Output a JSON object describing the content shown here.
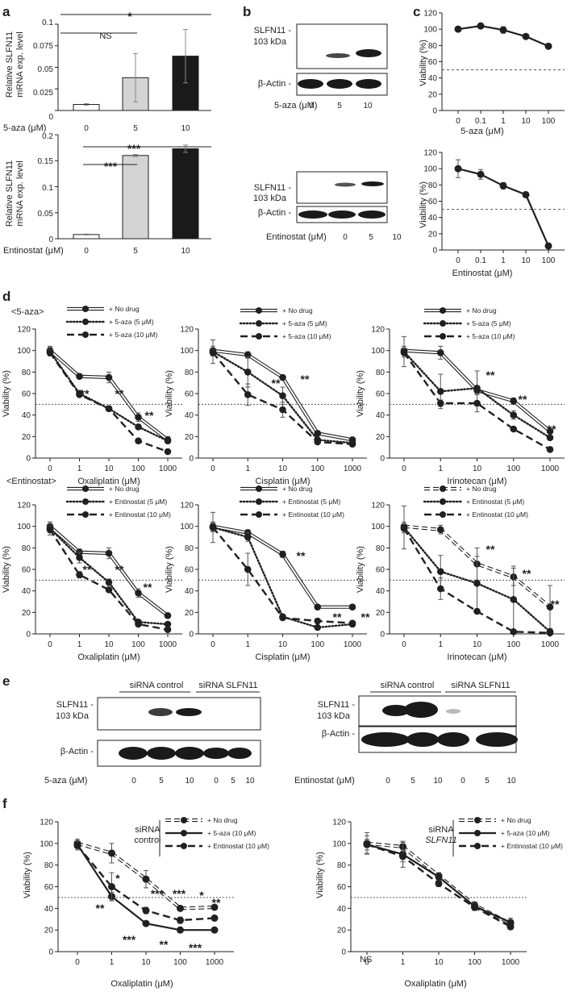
{
  "figure": {
    "panel_letters": [
      "a",
      "b",
      "c",
      "d",
      "e",
      "f"
    ],
    "a_top": {
      "ylabel_line1": "Relative SLFN11",
      "ylabel_line2": "mRNA exp. level",
      "xtitle": "5-aza (μM)",
      "yticks": [
        "0",
        "0.025",
        "0.05",
        "0.075",
        "0.1"
      ],
      "xcats": [
        "0",
        "5",
        "10"
      ],
      "sig_ns": "NS",
      "sig_star": "*"
    },
    "a_bot": {
      "ylabel_line1": "Relative SLFN11",
      "ylabel_line2": "mRNA exp. level",
      "xtitle": "Entinostat (μM)",
      "yticks": [
        "0",
        "0.05",
        "0.1",
        "0.15",
        "0.2"
      ],
      "xcats": [
        "0",
        "5",
        "10"
      ],
      "sig1": "***",
      "sig2": "***"
    },
    "b_top": {
      "row1_a": "SLFN11 -",
      "row1_b": "103 kDa",
      "row2": "β-Actin -",
      "xtitle": "5-aza (μM)",
      "lanes": [
        "0",
        "5",
        "10"
      ]
    },
    "b_bot": {
      "row1_a": "SLFN11 -",
      "row1_b": "103 kDa",
      "row2": "β-Actin -",
      "xtitle": "Entinostat (μM)",
      "lanes": [
        "0",
        "5",
        "10"
      ]
    },
    "c_top": {
      "ylabel": "Viability (%)",
      "xtitle": "5-aza (μM)",
      "yticks": [
        "0",
        "20",
        "40",
        "60",
        "80",
        "100",
        "120"
      ],
      "xticks": [
        "0",
        "0.1",
        "1",
        "10",
        "100"
      ]
    },
    "c_bot": {
      "ylabel": "Viability (%)",
      "xtitle": "Entinostat (μM)",
      "yticks": [
        "0",
        "20",
        "40",
        "60",
        "80",
        "100",
        "120"
      ],
      "xticks": [
        "0",
        "0.1",
        "1",
        "10",
        "100"
      ]
    },
    "d": {
      "group1": "<5-aza>",
      "group2": "<Entinostat>",
      "ylabel": "Viability (%)",
      "yticks": [
        "0",
        "20",
        "40",
        "60",
        "80",
        "100",
        "120"
      ],
      "xticks": [
        "0",
        "1",
        "10",
        "100",
        "1000"
      ],
      "xt_oxa": "Oxaliplatin (μM)",
      "xt_cis": "Cisplatin (μM)",
      "xt_iri": "Irinotecan (μM)",
      "leg_nodrug": "+ No drug",
      "leg_aza5": "+ 5-aza (5 μM)",
      "leg_aza10": "+ 5-aza (10 μM)",
      "leg_ent5": "+ Entinostat (5 μM)",
      "leg_ent10": "+ Entinostat (10 μM)",
      "star2": "**"
    },
    "e": {
      "header_ctrl": "siRNA control",
      "header_si": "siRNA SLFN11",
      "row1_a": "SLFN11 -",
      "row1_b": "103 kDa",
      "row2": "β-Actin -",
      "xt_left": "5-aza (μM)",
      "xt_right": "Entinostat (μM)",
      "lanes": [
        "0",
        "5",
        "10",
        "0",
        "5",
        "10"
      ]
    },
    "f": {
      "ylabel": "Viability (%)",
      "xtitle": "Oxaliplatin (μM)",
      "yticks": [
        "0",
        "20",
        "40",
        "60",
        "80",
        "100",
        "120"
      ],
      "xticks": [
        "0",
        "1",
        "10",
        "100",
        "1000"
      ],
      "sirna_ctrl_1": "siRNA",
      "sirna_ctrl_2": "control",
      "sirna_si_1": "siRNA",
      "sirna_si_2": "SLFN11",
      "leg_nodrug": "+ No drug",
      "leg_aza": "+ 5-aza (10 μM)",
      "leg_ent": "+ Entinostat (10 μM)",
      "ns": "NS",
      "s1": "*",
      "s2": "**",
      "s3": "***"
    }
  },
  "chart_data": [
    {
      "id": "a_top",
      "type": "bar",
      "categories": [
        "0",
        "5",
        "10"
      ],
      "values": [
        0.007,
        0.038,
        0.063
      ],
      "errors": [
        0.001,
        0.028,
        0.031
      ],
      "colors": [
        "#ffffff",
        "#d4d4d4",
        "#1a1a1a"
      ],
      "ylabel": "Relative SLFN11 mRNA exp. level",
      "xlabel": "5-aza (μM)",
      "ylim": [
        0,
        0.1
      ]
    },
    {
      "id": "a_bot",
      "type": "bar",
      "categories": [
        "0",
        "5",
        "10"
      ],
      "values": [
        0.008,
        0.16,
        0.173
      ],
      "errors": [
        0.001,
        0.002,
        0.007
      ],
      "colors": [
        "#ffffff",
        "#d4d4d4",
        "#1a1a1a"
      ],
      "ylabel": "Relative SLFN11 mRNA exp. level",
      "xlabel": "Entinostat (μM)",
      "ylim": [
        0,
        0.2
      ]
    },
    {
      "id": "c_top",
      "type": "line",
      "x": [
        "0",
        "0.1",
        "1",
        "10",
        "100"
      ],
      "series": [
        {
          "values": [
            100,
            104,
            99,
            91,
            79
          ],
          "errors": [
            3,
            2,
            4,
            2,
            2
          ]
        }
      ],
      "ylabel": "Viability (%)",
      "xlabel": "5-aza (μM)",
      "ylim": [
        0,
        120
      ],
      "reference_line": 50
    },
    {
      "id": "c_bot",
      "type": "line",
      "x": [
        "0",
        "0.1",
        "1",
        "10",
        "100"
      ],
      "series": [
        {
          "values": [
            100,
            93,
            79,
            68,
            5
          ],
          "errors": [
            11,
            6,
            4,
            3,
            1
          ]
        }
      ],
      "ylabel": "Viability (%)",
      "xlabel": "Entinostat (μM)",
      "ylim": [
        0,
        120
      ],
      "reference_line": 50
    },
    {
      "id": "d_aza_oxa",
      "type": "line",
      "x": [
        "0",
        "1",
        "10",
        "100",
        "1000"
      ],
      "series": [
        {
          "name": "+ No drug",
          "values": [
            100,
            76,
            75,
            38,
            17
          ],
          "errors": [
            4,
            2,
            5,
            4,
            3
          ]
        },
        {
          "name": "+ 5-aza (5 μM)",
          "values": [
            99,
            60,
            46,
            29,
            16
          ],
          "errors": [
            4,
            3,
            2,
            2,
            2
          ]
        },
        {
          "name": "+ 5-aza (10 μM)",
          "values": [
            98,
            59,
            46,
            16,
            6
          ],
          "errors": [
            3,
            2,
            2,
            1,
            1
          ]
        }
      ],
      "ylabel": "Viability (%)",
      "xlabel": "Oxaliplatin (μM)",
      "ylim": [
        0,
        120
      ],
      "reference_line": 50
    },
    {
      "id": "d_aza_cis",
      "type": "line",
      "x": [
        "0",
        "1",
        "10",
        "100",
        "1000"
      ],
      "series": [
        {
          "name": "+ No drug",
          "values": [
            100,
            96,
            75,
            23,
            17
          ],
          "errors": [
            4,
            3,
            2,
            1,
            1
          ]
        },
        {
          "name": "+ 5-aza (5 μM)",
          "values": [
            99,
            80,
            58,
            17,
            14
          ],
          "errors": [
            11,
            14,
            8,
            1,
            1
          ]
        },
        {
          "name": "+ 5-aza (10 μM)",
          "values": [
            98,
            59,
            45,
            15,
            13
          ],
          "errors": [
            3,
            10,
            7,
            1,
            1
          ]
        }
      ],
      "ylabel": "Viability (%)",
      "xlabel": "Cisplatin (μM)",
      "ylim": [
        0,
        120
      ],
      "reference_line": 50
    },
    {
      "id": "d_aza_iri",
      "type": "line",
      "x": [
        "0",
        "1",
        "10",
        "100",
        "1000"
      ],
      "series": [
        {
          "name": "+ No drug",
          "values": [
            100,
            98,
            63,
            53,
            25
          ],
          "errors": [
            4,
            6,
            3,
            3,
            2
          ]
        },
        {
          "name": "+ 5-aza (5 μM)",
          "values": [
            99,
            62,
            65,
            40,
            19
          ],
          "errors": [
            14,
            16,
            16,
            4,
            2
          ]
        },
        {
          "name": "+ 5-aza (10 μM)",
          "values": [
            98,
            51,
            51,
            27,
            8
          ],
          "errors": [
            4,
            3,
            8,
            2,
            1
          ]
        }
      ],
      "ylabel": "Viability (%)",
      "xlabel": "Irinotecan (μM)",
      "ylim": [
        0,
        120
      ],
      "reference_line": 50
    },
    {
      "id": "d_ent_oxa",
      "type": "line",
      "x": [
        "0",
        "1",
        "10",
        "100",
        "1000"
      ],
      "series": [
        {
          "name": "+ No drug",
          "values": [
            100,
            76,
            75,
            38,
            17
          ],
          "errors": [
            4,
            3,
            5,
            4,
            1
          ]
        },
        {
          "name": "+ Entinostat (5 μM)",
          "values": [
            98,
            71,
            48,
            11,
            9
          ],
          "errors": [
            6,
            5,
            3,
            1,
            1
          ]
        },
        {
          "name": "+ Entinostat (10 μM)",
          "values": [
            97,
            55,
            41,
            9,
            4
          ],
          "errors": [
            3,
            3,
            2,
            1,
            1
          ]
        }
      ],
      "ylabel": "Viability (%)",
      "xlabel": "Oxaliplatin (μM)",
      "ylim": [
        0,
        120
      ],
      "reference_line": 50
    },
    {
      "id": "d_ent_cis",
      "type": "line",
      "x": [
        "0",
        "1",
        "10",
        "100",
        "1000"
      ],
      "series": [
        {
          "name": "+ No drug",
          "values": [
            100,
            94,
            74,
            25,
            25
          ],
          "errors": [
            4,
            3,
            3,
            1,
            1
          ]
        },
        {
          "name": "+ Entinostat (5 μM)",
          "values": [
            99,
            90,
            16,
            6,
            9
          ],
          "errors": [
            14,
            4,
            1,
            1,
            1
          ]
        },
        {
          "name": "+ Entinostat (10 μM)",
          "values": [
            99,
            60,
            15,
            12,
            10
          ],
          "errors": [
            4,
            15,
            1,
            1,
            2
          ]
        }
      ],
      "ylabel": "Viability (%)",
      "xlabel": "Cisplatin (μM)",
      "ylim": [
        0,
        120
      ],
      "reference_line": 50
    },
    {
      "id": "d_ent_iri",
      "type": "line",
      "x": [
        "0",
        "1",
        "10",
        "100",
        "1000"
      ],
      "series": [
        {
          "name": "+ No drug",
          "values": [
            100,
            97,
            65,
            53,
            25
          ],
          "errors": [
            4,
            4,
            15,
            8,
            20
          ]
        },
        {
          "name": "+ Entinostat (5 μM)",
          "values": [
            99,
            58,
            47,
            32,
            2
          ],
          "errors": [
            20,
            15,
            25,
            31,
            2
          ]
        },
        {
          "name": "+ Entinostat (10 μM)",
          "values": [
            98,
            42,
            21,
            2,
            1
          ],
          "errors": [
            4,
            10,
            2,
            1,
            1
          ]
        }
      ],
      "ylabel": "Viability (%)",
      "xlabel": "Irinotecan (μM)",
      "ylim": [
        0,
        120
      ],
      "reference_line": 50
    },
    {
      "id": "f_ctrl",
      "type": "line",
      "x": [
        "0",
        "1",
        "10",
        "100",
        "1000"
      ],
      "series": [
        {
          "name": "+ No drug",
          "values": [
            100,
            91,
            67,
            40,
            41
          ],
          "errors": [
            4,
            9,
            8,
            2,
            1
          ]
        },
        {
          "name": "+ 5-aza (10 μM)",
          "values": [
            99,
            51,
            26,
            20,
            20
          ],
          "errors": [
            3,
            4,
            1,
            1,
            1
          ]
        },
        {
          "name": "+ Entinostat (10 μM)",
          "values": [
            98,
            60,
            38,
            29,
            31
          ],
          "errors": [
            4,
            13,
            3,
            3,
            2
          ]
        }
      ],
      "ylabel": "Viability (%)",
      "xlabel": "Oxaliplatin (μM)",
      "ylim": [
        0,
        120
      ],
      "reference_line": 50
    },
    {
      "id": "f_si",
      "type": "line",
      "x": [
        "0",
        "1",
        "10",
        "100",
        "1000"
      ],
      "series": [
        {
          "name": "+ No drug",
          "values": [
            100,
            97,
            70,
            43,
            26
          ],
          "errors": [
            10,
            4,
            3,
            3,
            3
          ]
        },
        {
          "name": "+ 5-aza (10 μM)",
          "values": [
            99,
            90,
            69,
            42,
            27
          ],
          "errors": [
            8,
            12,
            3,
            3,
            4
          ]
        },
        {
          "name": "+ Entinostat (10 μM)",
          "values": [
            99,
            88,
            63,
            41,
            23
          ],
          "errors": [
            5,
            5,
            3,
            3,
            2
          ]
        }
      ],
      "ylabel": "Viability (%)",
      "xlabel": "Oxaliplatin (μM)",
      "ylim": [
        0,
        120
      ],
      "reference_line": 50
    }
  ]
}
